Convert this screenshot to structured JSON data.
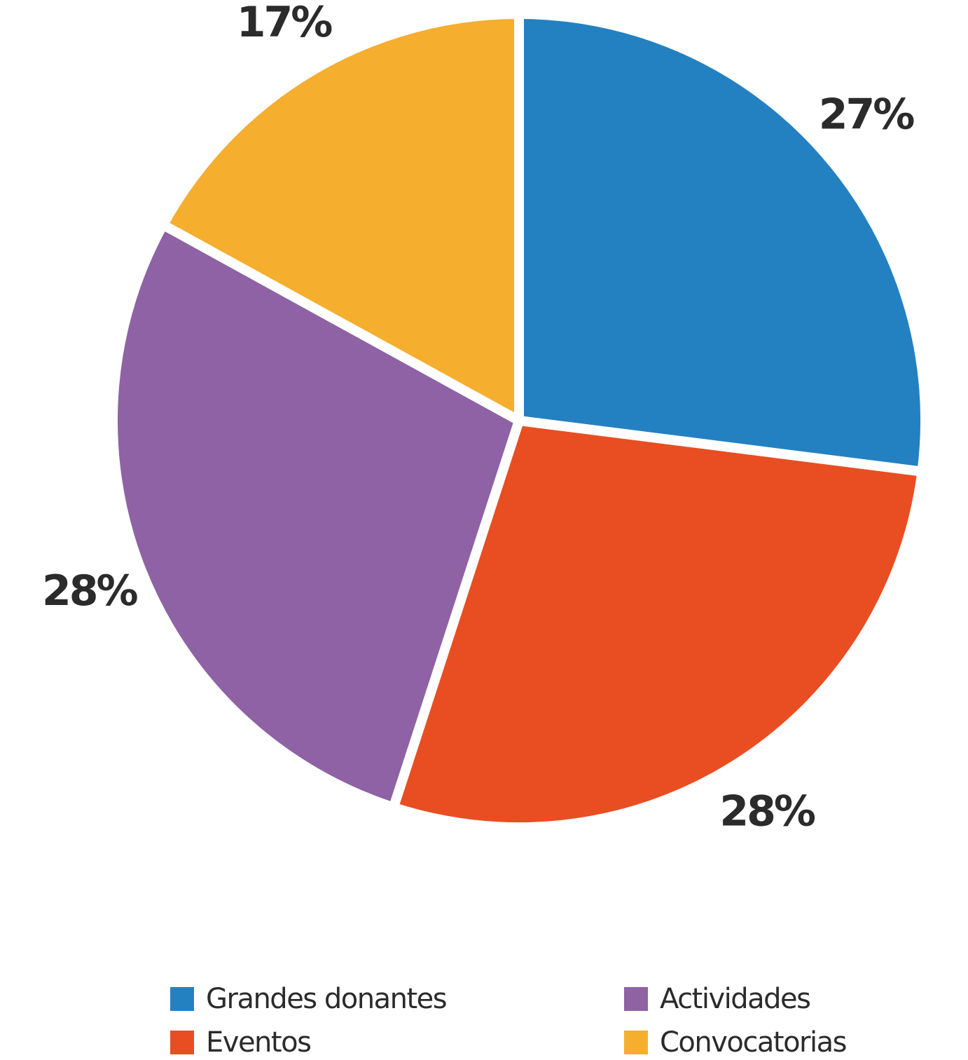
{
  "chart_data": {
    "type": "pie",
    "start_angle_deg": 0,
    "direction": "clockwise",
    "slices": [
      {
        "label": "Grandes donantes",
        "value": 27,
        "display": "27%",
        "color": "#2481c1"
      },
      {
        "label": "Eventos",
        "value": 28,
        "display": "28%",
        "color": "#e84e22"
      },
      {
        "label": "Actividades",
        "value": 28,
        "display": "28%",
        "color": "#8e62a5"
      },
      {
        "label": "Convocatorias",
        "value": 17,
        "display": "17%",
        "color": "#f5ae2e"
      }
    ],
    "legend_position": "bottom",
    "separator_color": "#ffffff"
  }
}
